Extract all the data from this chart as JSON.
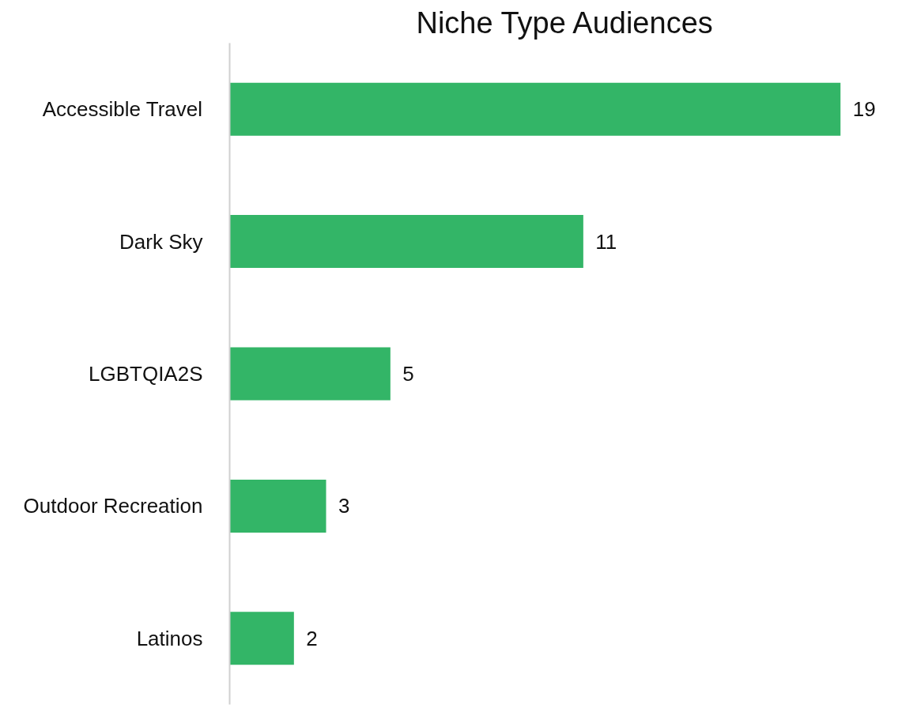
{
  "chart_data": {
    "type": "bar",
    "orientation": "horizontal",
    "title": "Niche Type Audiences",
    "categories": [
      "Accessible Travel",
      "Dark Sky",
      "LGBTQIA2S",
      "Outdoor Recreation",
      "Latinos"
    ],
    "values": [
      19,
      11,
      5,
      3,
      2
    ],
    "color": "#33b567",
    "data_labels": true,
    "grid": false,
    "tick_labels": "y"
  }
}
